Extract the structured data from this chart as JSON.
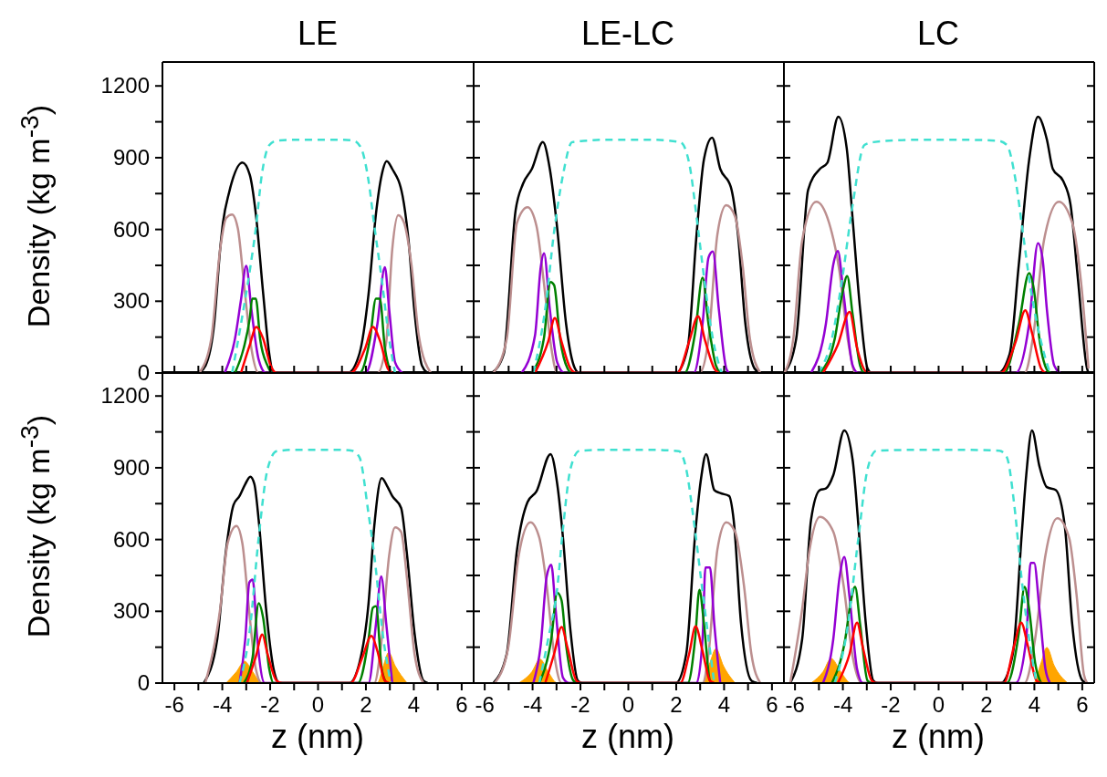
{
  "chart_data": [
    {
      "type": "line",
      "title": "LE",
      "ylabel": "Density (kg m$^{-3}$)",
      "tick_labels": "y",
      "xlim": [
        -6.5,
        6.5
      ],
      "ylim": [
        0,
        1300
      ],
      "xticks": [
        -6,
        {
          "value": -5,
          "label": null
        },
        -4,
        {
          "value": -3,
          "label": null
        },
        -2,
        {
          "value": -1,
          "label": null
        },
        0,
        {
          "value": 1,
          "label": null
        },
        2,
        {
          "value": 3,
          "label": null
        },
        4,
        {
          "value": 5,
          "label": null
        },
        6
      ],
      "yticks": [
        0,
        {
          "value": 150,
          "label": null
        },
        300,
        {
          "value": 450,
          "label": null
        },
        600,
        {
          "value": 750,
          "label": null
        },
        900,
        {
          "value": 1050,
          "label": null
        },
        1200
      ],
      "series": [
        {
          "color": "#000000",
          "x": [
            -5.0,
            -4.7,
            -4.34,
            -4.09,
            -3.97,
            -3.72,
            -3.16,
            -2.85,
            -2.6,
            -2.29,
            -2.04,
            -1.86,
            1.24,
            1.73,
            2.11,
            2.42,
            2.66,
            2.87,
            3.1,
            3.53,
            3.78,
            4.03,
            4.34,
            4.58
          ],
          "values": [
            0,
            31,
            205,
            517,
            629,
            753,
            880,
            828,
            666,
            330,
            81,
            0,
            0,
            81,
            330,
            666,
            828,
            885,
            853,
            741,
            554,
            255,
            31,
            0
          ]
        },
        {
          "color": "#bc8f8f",
          "x": [
            -4.96,
            -4.46,
            -4.09,
            -3.84,
            -3.59,
            -3.35,
            -3.1,
            -2.79,
            -2.48,
            2.48,
            2.85,
            3.1,
            3.35,
            3.59,
            3.9,
            4.21,
            4.71
          ],
          "values": [
            0,
            143,
            517,
            647,
            662,
            604,
            380,
            106,
            0,
            0,
            131,
            517,
            660,
            629,
            454,
            156,
            0
          ]
        },
        {
          "color": "#9400d3",
          "x": [
            -3.9,
            -3.47,
            -3.22,
            -3.0,
            -2.79,
            -2.48,
            -2.17,
            1.98,
            2.48,
            2.79,
            2.97,
            3.22,
            3.53
          ],
          "values": [
            0,
            143,
            305,
            448,
            271,
            56,
            0,
            0,
            205,
            442,
            267,
            44,
            0
          ]
        },
        {
          "color": "#008000",
          "x": [
            -3.47,
            -3.1,
            -2.85,
            -2.75,
            -2.6,
            -2.42,
            -2.11,
            -1.92,
            1.73,
            2.17,
            2.42,
            2.58,
            2.79,
            3.04
          ],
          "values": [
            0,
            106,
            230,
            311,
            311,
            143,
            31,
            0,
            0,
            143,
            311,
            311,
            106,
            0
          ]
        },
        {
          "color": "#ff0000",
          "x": [
            -3.22,
            -2.85,
            -2.58,
            -2.29,
            -1.98,
            -1.73,
            1.36,
            1.98,
            2.29,
            2.6,
            2.91,
            3.1
          ],
          "values": [
            0,
            118,
            193,
            143,
            31,
            0,
            0,
            106,
            193,
            131,
            19,
            0
          ]
        },
        {
          "color": "#40e0d0",
          "line_style": "dashed",
          "x": [
            -3.59,
            -3.22,
            -2.85,
            -2.6,
            -2.35,
            -2.04,
            -1.73,
            -1,
            0,
            1,
            1.49,
            1.8,
            2.11,
            2.35,
            2.66,
            2.97,
            3.22
          ],
          "values": [
            0,
            205,
            429,
            604,
            828,
            952,
            971,
            975,
            975,
            975,
            971,
            940,
            803,
            616,
            392,
            143,
            0
          ]
        }
      ]
    },
    {
      "type": "line",
      "title": "LE-LC",
      "tick_labels": false,
      "xlim": [
        -6.5,
        6.5
      ],
      "ylim": [
        0,
        1300
      ],
      "xticks": [
        -6,
        {
          "value": -5,
          "label": null
        },
        -4,
        {
          "value": -3,
          "label": null
        },
        -2,
        {
          "value": -1,
          "label": null
        },
        0,
        {
          "value": 1,
          "label": null
        },
        2,
        {
          "value": 3,
          "label": null
        },
        4,
        {
          "value": 5,
          "label": null
        },
        6
      ],
      "yticks": [
        0,
        {
          "value": 150,
          "label": null
        },
        300,
        {
          "value": 450,
          "label": null
        },
        600,
        {
          "value": 750,
          "label": null
        },
        900,
        {
          "value": 1050,
          "label": null
        },
        1200
      ],
      "series": [
        {
          "color": "#000000",
          "x": [
            -5.7,
            -5.2,
            -4.71,
            -4.4,
            -4.03,
            -3.57,
            -3.28,
            -2.97,
            -2.6,
            -2.23,
            -2.04,
            1.98,
            2.48,
            2.85,
            3.16,
            3.5,
            3.84,
            4.28,
            4.58,
            4.89,
            5.27,
            5.51
          ],
          "values": [
            0,
            81,
            679,
            791,
            853,
            965,
            853,
            604,
            205,
            19,
            0,
            0,
            106,
            579,
            894,
            984,
            853,
            778,
            579,
            205,
            19,
            0
          ]
        },
        {
          "color": "#bc8f8f",
          "x": [
            -5.64,
            -5.08,
            -4.65,
            -4.21,
            -3.84,
            -3.53,
            -3.22,
            -2.97,
            2.97,
            3.35,
            3.72,
            4.09,
            4.46,
            4.77,
            5.08,
            5.51
          ],
          "values": [
            0,
            143,
            629,
            693,
            616,
            380,
            106,
            0,
            0,
            143,
            579,
            701,
            654,
            454,
            143,
            0
          ]
        },
        {
          "color": "#9400d3",
          "x": [
            -4.46,
            -3.9,
            -3.66,
            -3.52,
            -3.28,
            -2.97,
            -2.66,
            2.73,
            3.1,
            3.35,
            3.53,
            3.78,
            4.09,
            4.21
          ],
          "values": [
            0,
            156,
            442,
            500,
            267,
            44,
            0,
            0,
            205,
            483,
            508,
            267,
            19,
            0
          ]
        },
        {
          "color": "#008000",
          "x": [
            -4.03,
            -3.53,
            -3.25,
            -3.1,
            -2.85,
            -2.54,
            -2.35,
            2.35,
            2.79,
            3.1,
            3.35,
            3.66,
            3.84
          ],
          "values": [
            0,
            143,
            380,
            367,
            143,
            19,
            0,
            0,
            168,
            398,
            205,
            31,
            0
          ]
        },
        {
          "color": "#ff0000",
          "x": [
            -3.9,
            -3.35,
            -3.07,
            -2.79,
            -2.42,
            -2.17,
            2.04,
            2.54,
            2.91,
            3.22,
            3.59,
            3.78
          ],
          "values": [
            0,
            131,
            230,
            131,
            19,
            0,
            0,
            131,
            237,
            131,
            19,
            0
          ]
        },
        {
          "color": "#40e0d0",
          "line_style": "dashed",
          "x": [
            -3.97,
            -3.47,
            -3.1,
            -2.73,
            -2.35,
            -1.73,
            -1,
            0,
            1,
            2.17,
            2.54,
            2.91,
            3.22,
            3.53,
            3.9
          ],
          "values": [
            0,
            268,
            591,
            828,
            965,
            971,
            975,
            975,
            975,
            965,
            878,
            604,
            355,
            143,
            0
          ]
        }
      ]
    },
    {
      "type": "line",
      "title": "LC",
      "tick_labels": false,
      "xlim": [
        -6.5,
        6.5
      ],
      "ylim": [
        0,
        1300
      ],
      "xticks": [
        -6,
        {
          "value": -5,
          "label": null
        },
        -4,
        {
          "value": -3,
          "label": null
        },
        -2,
        {
          "value": -1,
          "label": null
        },
        0,
        {
          "value": 1,
          "label": null
        },
        2,
        {
          "value": 3,
          "label": null
        },
        4,
        {
          "value": 5,
          "label": null
        },
        6
      ],
      "yticks": [
        0,
        {
          "value": 150,
          "label": null
        },
        300,
        {
          "value": 450,
          "label": null
        },
        600,
        {
          "value": 750,
          "label": null
        },
        900,
        {
          "value": 1050,
          "label": null
        },
        1200
      ],
      "series": [
        {
          "color": "#000000",
          "x": [
            -6.44,
            -5.95,
            -5.45,
            -4.96,
            -4.65,
            -4.19,
            -3.84,
            -3.59,
            -3.28,
            -2.97,
            -2.79,
            2.48,
            2.97,
            3.35,
            3.78,
            4.15,
            4.52,
            4.77,
            5.2,
            5.51,
            5.82,
            6.2,
            6.26
          ],
          "values": [
            0,
            143,
            766,
            853,
            878,
            1071,
            940,
            641,
            268,
            19,
            0,
            0,
            81,
            454,
            890,
            1071,
            977,
            853,
            803,
            704,
            392,
            19,
            0
          ]
        },
        {
          "color": "#bc8f8f",
          "x": [
            -6.44,
            -6.07,
            -5.7,
            -5.11,
            -4.58,
            -4.15,
            -3.78,
            -3.47,
            3.59,
            3.97,
            4.4,
            5.02,
            5.58,
            5.95,
            6.26
          ],
          "values": [
            0,
            143,
            554,
            716,
            629,
            430,
            131,
            0,
            0,
            168,
            554,
            716,
            629,
            380,
            19
          ]
        },
        {
          "color": "#9400d3",
          "x": [
            -5.33,
            -4.71,
            -4.4,
            -4.21,
            -3.97,
            -3.59,
            -3.35,
            3.22,
            3.78,
            4.15,
            4.34,
            4.52,
            4.83,
            5.08
          ],
          "values": [
            0,
            205,
            454,
            510,
            330,
            31,
            0,
            0,
            205,
            542,
            479,
            268,
            31,
            0
          ]
        },
        {
          "color": "#008000",
          "x": [
            -4.96,
            -4.34,
            -4.03,
            -3.82,
            -3.59,
            -3.28,
            -3.1,
            2.73,
            3.35,
            3.78,
            3.97,
            4.21,
            4.58,
            4.7
          ],
          "values": [
            0,
            143,
            330,
            405,
            243,
            31,
            0,
            0,
            205,
            417,
            355,
            143,
            6,
            0
          ]
        },
        {
          "color": "#ff0000",
          "x": [
            -4.83,
            -4.21,
            -3.72,
            -3.41,
            -3.04,
            -2.85,
            2.6,
            3.22,
            3.62,
            3.9,
            4.28,
            4.46
          ],
          "values": [
            0,
            118,
            255,
            106,
            6,
            0,
            0,
            131,
            262,
            168,
            19,
            0
          ]
        },
        {
          "color": "#40e0d0",
          "line_style": "dashed",
          "x": [
            -5.02,
            -4.46,
            -4.03,
            -3.59,
            -3.1,
            -2.73,
            -1,
            0,
            1,
            2.48,
            2.85,
            3.22,
            3.53,
            3.84,
            4.34,
            4.65
          ],
          "values": [
            0,
            143,
            392,
            704,
            953,
            965,
            975,
            975,
            975,
            971,
            953,
            803,
            579,
            355,
            106,
            0
          ]
        }
      ]
    },
    {
      "type": "line",
      "xlabel": "z (nm)",
      "ylabel": "Density (kg m$^{-3}$)",
      "xlim": [
        -6.5,
        6.5
      ],
      "ylim": [
        0,
        1300
      ],
      "xticks": [
        -6,
        {
          "value": -5,
          "label": null
        },
        -4,
        {
          "value": -3,
          "label": null
        },
        -2,
        {
          "value": -1,
          "label": null
        },
        0,
        {
          "value": 1,
          "label": null
        },
        2,
        {
          "value": 3,
          "label": null
        },
        4,
        {
          "value": 5,
          "label": null
        },
        6
      ],
      "yticks": [
        0,
        {
          "value": 150,
          "label": null
        },
        300,
        {
          "value": 450,
          "label": null
        },
        600,
        {
          "value": 750,
          "label": null
        },
        900,
        {
          "value": 1050,
          "label": null
        },
        1200
      ],
      "series": [
        {
          "color": "#000000",
          "x": [
            -4.77,
            -4.21,
            -3.84,
            -3.53,
            -3.28,
            -3.04,
            -2.83,
            -2.66,
            -2.48,
            -2.17,
            -1.86,
            -1.61,
            1.3,
            1.73,
            2.11,
            2.35,
            2.66,
            2.91,
            3.1,
            3.47,
            3.72,
            4.03,
            4.4,
            4.58
          ],
          "values": [
            0,
            184,
            558,
            745,
            782,
            832,
            863,
            832,
            682,
            309,
            60,
            0,
            0,
            85,
            334,
            657,
            857,
            819,
            782,
            732,
            533,
            209,
            10,
            0
          ]
        },
        {
          "color": "#bc8f8f",
          "x": [
            -4.71,
            -4.09,
            -3.78,
            -3.41,
            -3.16,
            -2.91,
            -2.6,
            -2.35,
            2.35,
            2.66,
            2.97,
            3.22,
            3.47,
            3.72,
            4.03,
            4.4
          ],
          "values": [
            0,
            309,
            583,
            657,
            583,
            334,
            60,
            0,
            0,
            184,
            533,
            651,
            632,
            433,
            122,
            0
          ]
        },
        {
          "color": "#9400d3",
          "x": [
            -3.28,
            -3.04,
            -2.87,
            -2.73,
            -2.54,
            -2.23,
            2.11,
            2.42,
            2.64,
            2.85,
            3.1
          ],
          "values": [
            0,
            184,
            421,
            433,
            184,
            0,
            0,
            247,
            446,
            247,
            0
          ]
        },
        {
          "color": "#008000",
          "x": [
            -3.1,
            -2.73,
            -2.48,
            -2.29,
            -2.04,
            -1.86,
            1.67,
            2.11,
            2.29,
            2.42,
            2.66,
            2.85
          ],
          "values": [
            0,
            110,
            334,
            271,
            60,
            0,
            0,
            184,
            315,
            321,
            60,
            0
          ]
        },
        {
          "color": "#ff0000",
          "x": [
            -2.97,
            -2.6,
            -2.33,
            -2.11,
            -1.73,
            -1.49,
            1.36,
            1.86,
            2.23,
            2.48,
            2.79,
            2.97
          ],
          "values": [
            0,
            110,
            203,
            122,
            10,
            0,
            0,
            110,
            197,
            134,
            10,
            0
          ]
        },
        {
          "type": "area",
          "color": "#ffa500",
          "x": [
            -3.84,
            -3.41,
            -3.07,
            -2.73,
            -2.35,
            2.48,
            2.73,
            2.95,
            3.22,
            3.72
          ],
          "values": [
            0,
            47,
            91,
            47,
            0,
            0,
            72,
            128,
            72,
            0
          ]
        },
        {
          "color": "#40e0d0",
          "line_style": "dashed",
          "x": [
            -3.28,
            -2.85,
            -2.48,
            -2.11,
            -1.73,
            -1,
            0,
            1,
            1.43,
            1.73,
            2.11,
            2.35,
            2.73,
            3.04
          ],
          "values": [
            0,
            222,
            608,
            894,
            969,
            975,
            975,
            975,
            971,
            944,
            707,
            533,
            184,
            0
          ]
        }
      ]
    },
    {
      "type": "line",
      "xlabel": "z (nm)",
      "tick_labels": "x",
      "xlim": [
        -6.5,
        6.5
      ],
      "ylim": [
        0,
        1300
      ],
      "xticks": [
        -6,
        {
          "value": -5,
          "label": null
        },
        -4,
        {
          "value": -3,
          "label": null
        },
        -2,
        {
          "value": -1,
          "label": null
        },
        0,
        {
          "value": 1,
          "label": null
        },
        2,
        {
          "value": 3,
          "label": null
        },
        4,
        {
          "value": 5,
          "label": null
        },
        6
      ],
      "yticks": [
        0,
        {
          "value": 150,
          "label": null
        },
        300,
        {
          "value": 450,
          "label": null
        },
        600,
        {
          "value": 750,
          "label": null
        },
        900,
        {
          "value": 1050,
          "label": null
        },
        1200
      ],
      "series": [
        {
          "color": "#000000",
          "x": [
            -5.64,
            -5.08,
            -4.65,
            -4.21,
            -3.84,
            -3.25,
            -2.97,
            -2.73,
            -2.42,
            -2.11,
            -1.92,
            1.98,
            2.42,
            2.79,
            3.04,
            3.25,
            3.59,
            3.84,
            4.21,
            4.4,
            4.71,
            5.14,
            5.39
          ],
          "values": [
            0,
            122,
            558,
            757,
            801,
            957,
            832,
            608,
            222,
            10,
            0,
            0,
            122,
            620,
            857,
            957,
            807,
            794,
            782,
            682,
            247,
            10,
            0
          ]
        },
        {
          "color": "#bc8f8f",
          "x": [
            -5.58,
            -5.02,
            -4.58,
            -4.09,
            -3.72,
            -3.41,
            -3.1,
            -2.79,
            3.1,
            3.35,
            3.72,
            4.09,
            4.46,
            4.83,
            5.14,
            5.51
          ],
          "values": [
            0,
            147,
            533,
            672,
            608,
            408,
            122,
            0,
            0,
            122,
            558,
            672,
            632,
            408,
            122,
            0
          ]
        },
        {
          "color": "#9400d3",
          "x": [
            -3.97,
            -3.66,
            -3.41,
            -3.22,
            -3.04,
            -2.73,
            -2.48,
            2.85,
            3.1,
            3.22,
            3.41,
            3.59,
            3.84
          ],
          "values": [
            0,
            159,
            446,
            495,
            309,
            22,
            0,
            0,
            184,
            483,
            483,
            247,
            0
          ]
        },
        {
          "color": "#008000",
          "x": [
            -3.72,
            -3.22,
            -2.97,
            -2.79,
            -2.6,
            -2.29,
            -2.11,
            2.48,
            2.79,
            2.97,
            3.16,
            3.41,
            3.53
          ],
          "values": [
            0,
            184,
            377,
            346,
            159,
            10,
            0,
            0,
            184,
            390,
            247,
            10,
            0
          ]
        },
        {
          "color": "#ff0000",
          "x": [
            -3.47,
            -3.1,
            -2.79,
            -2.54,
            -2.17,
            -1.98,
            2.17,
            2.54,
            2.81,
            3.1,
            3.41,
            3.59
          ],
          "values": [
            0,
            122,
            234,
            147,
            10,
            0,
            0,
            122,
            237,
            134,
            10,
            0
          ]
        },
        {
          "type": "area",
          "color": "#ffa500",
          "x": [
            -4.58,
            -4.03,
            -3.69,
            -3.35,
            -2.97,
            3.1,
            3.41,
            3.66,
            3.97,
            4.46
          ],
          "values": [
            0,
            47,
            100,
            47,
            0,
            0,
            85,
            144,
            72,
            0
          ]
        },
        {
          "color": "#40e0d0",
          "line_style": "dashed",
          "x": [
            -3.72,
            -3.35,
            -2.97,
            -2.73,
            -2.42,
            -2.04,
            -1,
            0,
            1,
            2.11,
            2.42,
            2.73,
            3.04,
            3.35,
            3.59
          ],
          "values": [
            0,
            184,
            396,
            645,
            894,
            971,
            975,
            975,
            975,
            969,
            894,
            682,
            433,
            184,
            0
          ]
        }
      ]
    },
    {
      "type": "line",
      "xlabel": "z (nm)",
      "tick_labels": "x",
      "xlim": [
        -6.5,
        6.5
      ],
      "ylim": [
        0,
        1300
      ],
      "xticks": [
        -6,
        {
          "value": -5,
          "label": null
        },
        -4,
        {
          "value": -3,
          "label": null
        },
        -2,
        {
          "value": -1,
          "label": null
        },
        0,
        {
          "value": 1,
          "label": null
        },
        2,
        {
          "value": 3,
          "label": null
        },
        4,
        {
          "value": 5,
          "label": null
        },
        6
      ],
      "yticks": [
        0,
        {
          "value": 150,
          "label": null
        },
        300,
        {
          "value": 450,
          "label": null
        },
        600,
        {
          "value": 750,
          "label": null
        },
        900,
        {
          "value": 1050,
          "label": null
        },
        1200
      ],
      "series": [
        {
          "color": "#000000",
          "x": [
            -6.2,
            -5.7,
            -5.33,
            -4.96,
            -4.71,
            -4.4,
            -3.94,
            -3.59,
            -3.35,
            -3.04,
            -2.73,
            -2.54,
            2.6,
            3.1,
            3.47,
            3.66,
            3.9,
            4.21,
            4.52,
            4.89,
            5.27,
            5.58,
            6.01,
            6.2
          ],
          "values": [
            0,
            184,
            682,
            807,
            813,
            869,
            1056,
            931,
            657,
            247,
            10,
            0,
            0,
            122,
            620,
            869,
            1056,
            907,
            819,
            807,
            657,
            247,
            10,
            0
          ]
        },
        {
          "color": "#bc8f8f",
          "x": [
            -6.2,
            -5.7,
            -5.39,
            -4.96,
            -4.4,
            -3.97,
            -3.59,
            -3.22,
            3.59,
            4.03,
            4.46,
            4.96,
            5.45,
            5.76,
            6.07,
            6.2
          ],
          "values": [
            0,
            309,
            558,
            695,
            633,
            408,
            110,
            0,
            0,
            184,
            533,
            689,
            608,
            371,
            35,
            0
          ]
        },
        {
          "color": "#9400d3",
          "x": [
            -4.83,
            -4.4,
            -4.15,
            -3.94,
            -3.72,
            -3.41,
            -3.16,
            3.22,
            3.66,
            3.84,
            3.99,
            4.21,
            4.46,
            4.65
          ],
          "values": [
            0,
            184,
            433,
            527,
            359,
            60,
            0,
            0,
            184,
            502,
            502,
            309,
            60,
            0
          ]
        },
        {
          "color": "#008000",
          "x": [
            -4.46,
            -3.9,
            -3.66,
            -3.49,
            -3.28,
            -2.97,
            -2.79,
            2.85,
            3.35,
            3.59,
            3.78,
            4.03,
            4.28
          ],
          "values": [
            0,
            184,
            346,
            402,
            247,
            10,
            0,
            0,
            209,
            402,
            309,
            85,
            0
          ]
        },
        {
          "color": "#ff0000",
          "x": [
            -4.21,
            -3.72,
            -3.41,
            -3.16,
            -2.79,
            -2.6,
            2.73,
            3.16,
            3.45,
            3.72,
            4.09,
            4.28
          ],
          "values": [
            0,
            122,
            253,
            147,
            10,
            0,
            0,
            159,
            253,
            159,
            10,
            0
          ]
        },
        {
          "type": "area",
          "color": "#ffa500",
          "x": [
            -5.33,
            -4.83,
            -4.49,
            -4.09,
            -3.66,
            3.97,
            4.28,
            4.52,
            4.83,
            5.39
          ],
          "values": [
            0,
            47,
            103,
            47,
            0,
            0,
            85,
            149,
            72,
            0
          ]
        },
        {
          "color": "#40e0d0",
          "line_style": "dashed",
          "x": [
            -4.34,
            -3.84,
            -3.35,
            -2.97,
            -2.6,
            -1,
            0,
            1,
            2.54,
            2.85,
            3.16,
            3.47,
            3.78,
            4.09
          ],
          "values": [
            0,
            209,
            608,
            894,
            971,
            975,
            975,
            975,
            971,
            944,
            745,
            433,
            184,
            0
          ]
        }
      ]
    }
  ]
}
